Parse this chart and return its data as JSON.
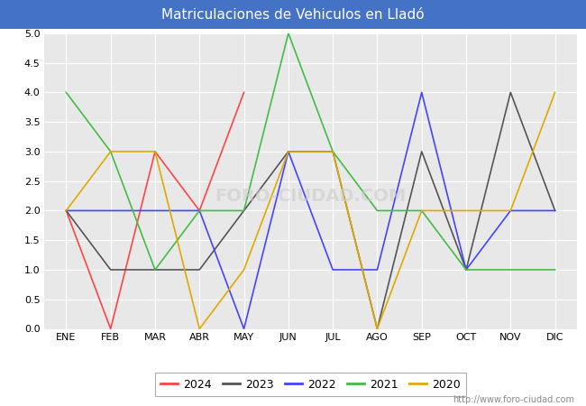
{
  "title": "Matriculaciones de Vehiculos en Lladó",
  "title_color": "#ffffff",
  "title_bg_color": "#4472c4",
  "months": [
    "ENE",
    "FEB",
    "MAR",
    "ABR",
    "MAY",
    "JUN",
    "JUL",
    "AGO",
    "SEP",
    "OCT",
    "NOV",
    "DIC"
  ],
  "series": {
    "2024": {
      "color": "#ff4444",
      "values": [
        2,
        0,
        3,
        2,
        4,
        null,
        null,
        null,
        null,
        null,
        null,
        null
      ]
    },
    "2023": {
      "color": "#555555",
      "values": [
        2,
        1,
        1,
        1,
        2,
        3,
        3,
        0,
        3,
        1,
        4,
        2
      ]
    },
    "2022": {
      "color": "#4444ff",
      "values": [
        2,
        2,
        2,
        2,
        0,
        3,
        1,
        1,
        4,
        1,
        2,
        2
      ]
    },
    "2021": {
      "color": "#44bb44",
      "values": [
        4,
        3,
        1,
        2,
        2,
        5,
        3,
        2,
        2,
        1,
        1,
        1
      ]
    },
    "2020": {
      "color": "#ddaa00",
      "values": [
        2,
        3,
        3,
        0,
        1,
        3,
        3,
        0,
        2,
        2,
        2,
        4
      ]
    }
  },
  "ylim": [
    0,
    5.0
  ],
  "yticks": [
    0.0,
    0.5,
    1.0,
    1.5,
    2.0,
    2.5,
    3.0,
    3.5,
    4.0,
    4.5,
    5.0
  ],
  "plot_bg_color": "#e8e8e8",
  "grid_color": "#ffffff",
  "watermark_plot": "FORO-CIUDAD.COM",
  "watermark_url": "http://www.foro-ciudad.com",
  "legend_years": [
    "2024",
    "2023",
    "2022",
    "2021",
    "2020"
  ]
}
